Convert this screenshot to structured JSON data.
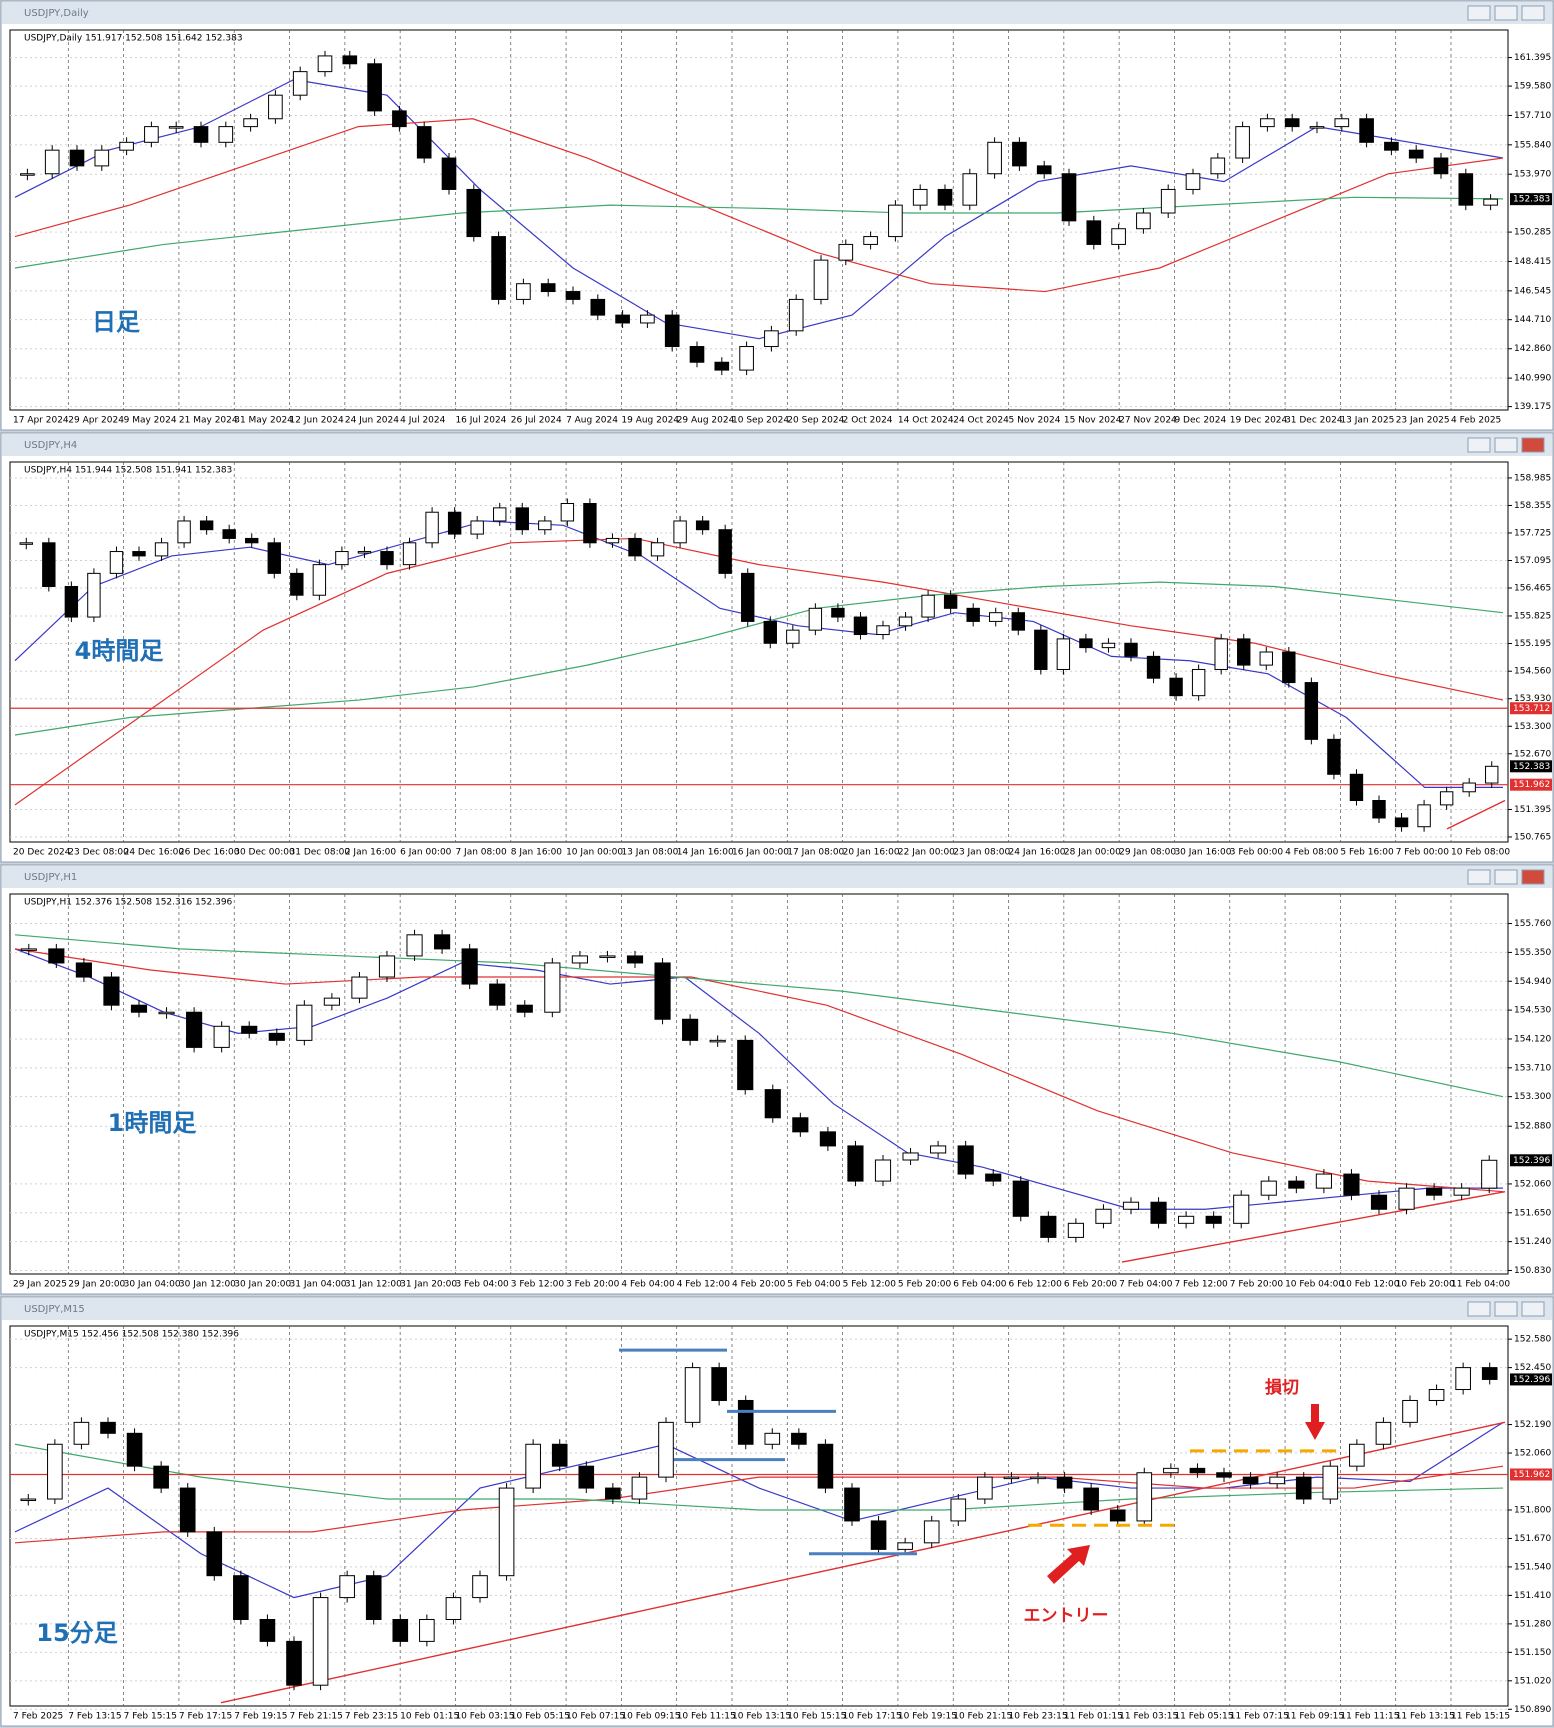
{
  "chart_data": [
    {
      "type": "candlestick",
      "window_title": "USDJPY,Daily",
      "header": "USDJPY,Daily 151.917 152.508 151.642 152.383",
      "label": "日足",
      "ylim": [
        138.96,
        163.15
      ],
      "yticks": [
        {
          "value": 161.395,
          "label": "161.395"
        },
        {
          "value": 159.58,
          "label": "159.580"
        },
        {
          "value": 157.71,
          "label": "157.710"
        },
        {
          "value": 155.84,
          "label": "155.840"
        },
        {
          "value": 153.97,
          "label": "153.970"
        },
        {
          "value": 150.285,
          "label": "150.285"
        },
        {
          "value": 148.415,
          "label": "148.415"
        },
        {
          "value": 146.545,
          "label": "146.545"
        },
        {
          "value": 144.71,
          "label": "144.710"
        },
        {
          "value": 142.86,
          "label": "142.860"
        },
        {
          "value": 140.99,
          "label": "140.990"
        },
        {
          "value": 139.175,
          "label": "139.175"
        }
      ],
      "markers": [
        {
          "value": 152.383,
          "label": "152.383",
          "color": "#000000"
        }
      ],
      "hlines": [],
      "xlabels": [
        "17 Apr 2024",
        "29 Apr 2024",
        "9 May 2024",
        "21 May 2024",
        "31 May 2024",
        "12 Jun 2024",
        "24 Jun 2024",
        "4 Jul 2024",
        "16 Jul 2024",
        "26 Jul 2024",
        "7 Aug 2024",
        "19 Aug 2024",
        "29 Aug 2024",
        "10 Sep 2024",
        "20 Sep 2024",
        "2 Oct 2024",
        "14 Oct 2024",
        "24 Oct 2024",
        "5 Nov 2024",
        "15 Nov 2024",
        "27 Nov 2024",
        "9 Dec 2024",
        "19 Dec 2024",
        "31 Dec 2024",
        "13 Jan 2025",
        "23 Jan 2025",
        "4 Feb 2025"
      ],
      "closes": [
        154,
        155.5,
        154.5,
        155.5,
        156,
        157,
        157,
        156,
        157,
        157.5,
        159,
        160.5,
        161.5,
        161,
        158,
        157,
        155,
        153,
        150,
        146,
        147,
        146.5,
        146,
        145,
        144.5,
        145,
        143,
        142,
        141.5,
        143,
        144,
        146,
        148.5,
        149.5,
        150,
        152,
        153,
        152,
        154,
        156,
        154.5,
        154,
        151,
        149.5,
        150.5,
        151.5,
        153,
        154,
        155,
        157,
        157.5,
        157,
        157,
        157.5,
        156,
        155.5,
        155,
        154,
        152,
        152.383
      ],
      "ma": [
        {
          "color": "#3838c8",
          "values": [
            152.5,
            155.5,
            157,
            160,
            159,
            153,
            148,
            144.5,
            143.5,
            145,
            150,
            153.5,
            154.5,
            153.5,
            157,
            156,
            155
          ]
        },
        {
          "color": "#e03030",
          "values": [
            150,
            152,
            154.5,
            157,
            157.5,
            155,
            152,
            149,
            147,
            146.5,
            148,
            151,
            154,
            155
          ]
        },
        {
          "color": "#3fa86a",
          "values": [
            148,
            149.5,
            150.5,
            151.5,
            152,
            151.8,
            151.5,
            151.5,
            152,
            152.5,
            152.4
          ]
        }
      ],
      "trendlines": [],
      "levels": []
    },
    {
      "type": "candlestick",
      "window_title": "USDJPY,H4",
      "header": "USDJPY,H4 151.944 152.508 151.941 152.383",
      "label": "4時間足",
      "ylim": [
        150.65,
        159.35
      ],
      "yticks": [
        {
          "value": 158.985,
          "label": "158.985"
        },
        {
          "value": 158.355,
          "label": "158.355"
        },
        {
          "value": 157.725,
          "label": "157.725"
        },
        {
          "value": 157.095,
          "label": "157.095"
        },
        {
          "value": 156.465,
          "label": "156.465"
        },
        {
          "value": 155.825,
          "label": "155.825"
        },
        {
          "value": 155.195,
          "label": "155.195"
        },
        {
          "value": 154.56,
          "label": "154.560"
        },
        {
          "value": 153.93,
          "label": "153.930"
        },
        {
          "value": 153.3,
          "label": "153.300"
        },
        {
          "value": 152.67,
          "label": "152.670"
        },
        {
          "value": 151.395,
          "label": "151.395"
        },
        {
          "value": 150.765,
          "label": "150.765"
        }
      ],
      "markers": [
        {
          "value": 153.712,
          "label": "153.712",
          "color": "#e03030"
        },
        {
          "value": 152.383,
          "label": "152.383",
          "color": "#000000"
        },
        {
          "value": 151.962,
          "label": "151.962",
          "color": "#e03030"
        }
      ],
      "hlines": [
        153.712,
        151.962
      ],
      "xlabels": [
        "20 Dec 2024",
        "23 Dec 08:00",
        "24 Dec 16:00",
        "26 Dec 16:00",
        "30 Dec 00:00",
        "31 Dec 08:00",
        "2 Jan 16:00",
        "6 Jan 00:00",
        "7 Jan 08:00",
        "8 Jan 16:00",
        "10 Jan 00:00",
        "13 Jan 08:00",
        "14 Jan 16:00",
        "16 Jan 00:00",
        "17 Jan 08:00",
        "20 Jan 16:00",
        "22 Jan 00:00",
        "23 Jan 08:00",
        "24 Jan 16:00",
        "28 Jan 00:00",
        "29 Jan 08:00",
        "30 Jan 16:00",
        "3 Feb 00:00",
        "4 Feb 08:00",
        "5 Feb 16:00",
        "7 Feb 00:00",
        "10 Feb 08:00"
      ],
      "closes": [
        157.5,
        156.5,
        155.8,
        156.8,
        157.3,
        157.2,
        157.5,
        158,
        157.8,
        157.6,
        157.5,
        156.8,
        156.3,
        157,
        157.3,
        157.3,
        157,
        157.5,
        158.2,
        157.7,
        158,
        158.3,
        157.8,
        158,
        158.4,
        157.5,
        157.6,
        157.2,
        157.5,
        158,
        157.8,
        156.8,
        155.7,
        155.2,
        155.5,
        156,
        155.8,
        155.4,
        155.6,
        155.8,
        156.3,
        156,
        155.7,
        155.9,
        155.5,
        154.6,
        155.3,
        155.1,
        155.2,
        154.9,
        154.4,
        154,
        154.6,
        155.3,
        154.7,
        155,
        154.3,
        153,
        152.2,
        151.6,
        151.2,
        151,
        151.5,
        151.8,
        152,
        152.383
      ],
      "ma": [
        {
          "color": "#3838c8",
          "values": [
            154.8,
            156.5,
            157.2,
            157.4,
            157,
            157.5,
            158,
            157.9,
            157.2,
            156,
            155.6,
            155.4,
            155.9,
            155.7,
            154.9,
            154.8,
            154.5,
            153.5,
            151.9,
            151.9
          ]
        },
        {
          "color": "#e03030",
          "values": [
            151.5,
            153.5,
            155.5,
            156.8,
            157.5,
            157.6,
            157,
            156.6,
            156.1,
            155.6,
            155.2,
            154.5,
            153.9
          ]
        },
        {
          "color": "#3fa86a",
          "values": [
            153.1,
            153.5,
            153.7,
            153.9,
            154.2,
            154.7,
            155.3,
            156,
            156.3,
            156.5,
            156.6,
            156.5,
            156.2,
            155.9
          ]
        }
      ],
      "trendlines": [
        {
          "color": "#e03030",
          "values": [
            150.95,
            151.6
          ]
        }
      ],
      "levels": []
    },
    {
      "type": "candlestick",
      "window_title": "USDJPY,H1",
      "header": "USDJPY,H1 152.376 152.508 152.316 152.396",
      "label": "1時間足",
      "ylim": [
        150.78,
        156.18
      ],
      "yticks": [
        {
          "value": 155.76,
          "label": "155.760"
        },
        {
          "value": 155.35,
          "label": "155.350"
        },
        {
          "value": 154.94,
          "label": "154.940"
        },
        {
          "value": 154.53,
          "label": "154.530"
        },
        {
          "value": 154.12,
          "label": "154.120"
        },
        {
          "value": 153.71,
          "label": "153.710"
        },
        {
          "value": 153.3,
          "label": "153.300"
        },
        {
          "value": 152.88,
          "label": "152.880"
        },
        {
          "value": 152.06,
          "label": "152.060"
        },
        {
          "value": 151.65,
          "label": "151.650"
        },
        {
          "value": 151.24,
          "label": "151.240"
        },
        {
          "value": 150.83,
          "label": "150.830"
        }
      ],
      "markers": [
        {
          "value": 152.396,
          "label": "152.396",
          "color": "#000000"
        }
      ],
      "hlines": [],
      "xlabels": [
        "29 Jan 2025",
        "29 Jan 20:00",
        "30 Jan 04:00",
        "30 Jan 12:00",
        "30 Jan 20:00",
        "31 Jan 04:00",
        "31 Jan 12:00",
        "31 Jan 20:00",
        "3 Feb 04:00",
        "3 Feb 12:00",
        "3 Feb 20:00",
        "4 Feb 04:00",
        "4 Feb 12:00",
        "4 Feb 20:00",
        "5 Feb 04:00",
        "5 Feb 12:00",
        "5 Feb 20:00",
        "6 Feb 04:00",
        "6 Feb 12:00",
        "6 Feb 20:00",
        "7 Feb 04:00",
        "7 Feb 12:00",
        "7 Feb 20:00",
        "10 Feb 04:00",
        "10 Feb 12:00",
        "10 Feb 20:00",
        "11 Feb 04:00"
      ],
      "closes": [
        155.4,
        155.2,
        155,
        154.6,
        154.5,
        154.5,
        154,
        154.3,
        154.2,
        154.1,
        154.6,
        154.7,
        155,
        155.3,
        155.6,
        155.4,
        154.9,
        154.6,
        154.5,
        155.2,
        155.3,
        155.3,
        155.2,
        154.4,
        154.1,
        154.1,
        153.4,
        153,
        152.8,
        152.6,
        152.1,
        152.4,
        152.5,
        152.6,
        152.2,
        152.1,
        151.6,
        151.3,
        151.5,
        151.7,
        151.8,
        151.5,
        151.6,
        151.5,
        151.9,
        152.1,
        152,
        152.2,
        151.9,
        151.7,
        152,
        151.9,
        152,
        152.396
      ],
      "ma": [
        {
          "color": "#3838c8",
          "values": [
            155.4,
            155,
            154.5,
            154.2,
            154.3,
            154.7,
            155.2,
            155.1,
            154.9,
            155,
            154.2,
            153.2,
            152.5,
            152.3,
            152,
            151.7,
            151.7,
            151.8,
            151.9,
            152,
            152
          ]
        },
        {
          "color": "#e03030",
          "values": [
            155.4,
            155.1,
            154.9,
            155,
            155,
            155,
            154.6,
            153.9,
            153.1,
            152.5,
            152.1,
            151.95
          ]
        },
        {
          "color": "#3fa86a",
          "values": [
            155.6,
            155.4,
            155.3,
            155.2,
            155,
            154.8,
            154.5,
            154.2,
            153.8,
            153.3
          ]
        }
      ],
      "trendlines": [
        {
          "color": "#e03030",
          "values": [
            150.95,
            151.95
          ]
        }
      ],
      "levels": []
    },
    {
      "type": "candlestick",
      "window_title": "USDJPY,M15",
      "header": "USDJPY,M15 152.456 152.508 152.380 152.396",
      "label": "15分足",
      "ylim": [
        150.905,
        152.64
      ],
      "yticks": [
        {
          "value": 152.58,
          "label": "152.580"
        },
        {
          "value": 152.45,
          "label": "152.450"
        },
        {
          "value": 152.19,
          "label": "152.190"
        },
        {
          "value": 152.06,
          "label": "152.060"
        },
        {
          "value": 151.8,
          "label": "151.800"
        },
        {
          "value": 151.67,
          "label": "151.670"
        },
        {
          "value": 151.54,
          "label": "151.540"
        },
        {
          "value": 151.41,
          "label": "151.410"
        },
        {
          "value": 151.28,
          "label": "151.280"
        },
        {
          "value": 151.15,
          "label": "151.150"
        },
        {
          "value": 151.02,
          "label": "151.020"
        },
        {
          "value": 150.89,
          "label": "150.890"
        }
      ],
      "markers": [
        {
          "value": 152.396,
          "label": "152.396",
          "color": "#000000"
        },
        {
          "value": 151.962,
          "label": "151.962",
          "color": "#e03030"
        }
      ],
      "hlines": [
        151.962
      ],
      "xlabels": [
        "7 Feb 2025",
        "7 Feb 13:15",
        "7 Feb 15:15",
        "7 Feb 17:15",
        "7 Feb 19:15",
        "7 Feb 21:15",
        "7 Feb 23:15",
        "10 Feb 01:15",
        "10 Feb 03:15",
        "10 Feb 05:15",
        "10 Feb 07:15",
        "10 Feb 09:15",
        "10 Feb 11:15",
        "10 Feb 13:15",
        "10 Feb 15:15",
        "10 Feb 17:15",
        "10 Feb 19:15",
        "10 Feb 21:15",
        "10 Feb 23:15",
        "11 Feb 01:15",
        "11 Feb 03:15",
        "11 Feb 05:15",
        "11 Feb 07:15",
        "11 Feb 09:15",
        "11 Feb 11:15",
        "11 Feb 13:15",
        "11 Feb 15:15"
      ],
      "closes": [
        151.85,
        152.1,
        152.2,
        152.15,
        152,
        151.9,
        151.7,
        151.5,
        151.3,
        151.2,
        151,
        151.4,
        151.5,
        151.3,
        151.2,
        151.3,
        151.4,
        151.5,
        151.9,
        152.1,
        152,
        151.9,
        151.85,
        151.95,
        152.2,
        152.45,
        152.3,
        152.1,
        152.15,
        152.1,
        151.9,
        151.75,
        151.62,
        151.65,
        151.75,
        151.85,
        151.95,
        151.95,
        151.95,
        151.9,
        151.8,
        151.75,
        151.97,
        151.99,
        151.97,
        151.95,
        151.92,
        151.95,
        151.85,
        152,
        152.1,
        152.2,
        152.3,
        152.35,
        152.45,
        152.396
      ],
      "ma": [
        {
          "color": "#3838c8",
          "values": [
            151.7,
            151.9,
            151.6,
            151.4,
            151.5,
            151.9,
            152,
            152.1,
            151.9,
            151.75,
            151.85,
            151.95,
            151.9,
            151.9,
            151.95,
            151.93,
            152.2
          ]
        },
        {
          "color": "#e03030",
          "values": [
            151.65,
            151.7,
            151.7,
            151.8,
            151.85,
            151.95,
            151.95,
            151.95,
            151.9,
            151.9,
            152
          ]
        },
        {
          "color": "#3fa86a",
          "values": [
            152.1,
            151.95,
            151.85,
            151.85,
            151.8,
            151.8,
            151.85,
            151.88,
            151.9
          ]
        }
      ],
      "trendlines": [
        {
          "color": "#e03030",
          "values": [
            150.92,
            152.2
          ]
        }
      ],
      "levels": [
        {
          "value": 152.53,
          "color": "#4a7fc0",
          "dashed": false
        },
        {
          "value": 152.25,
          "color": "#4a7fc0",
          "dashed": false
        },
        {
          "value": 152.03,
          "color": "#4a7fc0",
          "dashed": false
        },
        {
          "value": 151.6,
          "color": "#4a7fc0",
          "dashed": false
        },
        {
          "value": 151.73,
          "color": "#f5a800",
          "dashed": true
        },
        {
          "value": 152.07,
          "color": "#f5a800",
          "dashed": true
        }
      ],
      "annotations": [
        "損切",
        "エントリー"
      ]
    }
  ]
}
